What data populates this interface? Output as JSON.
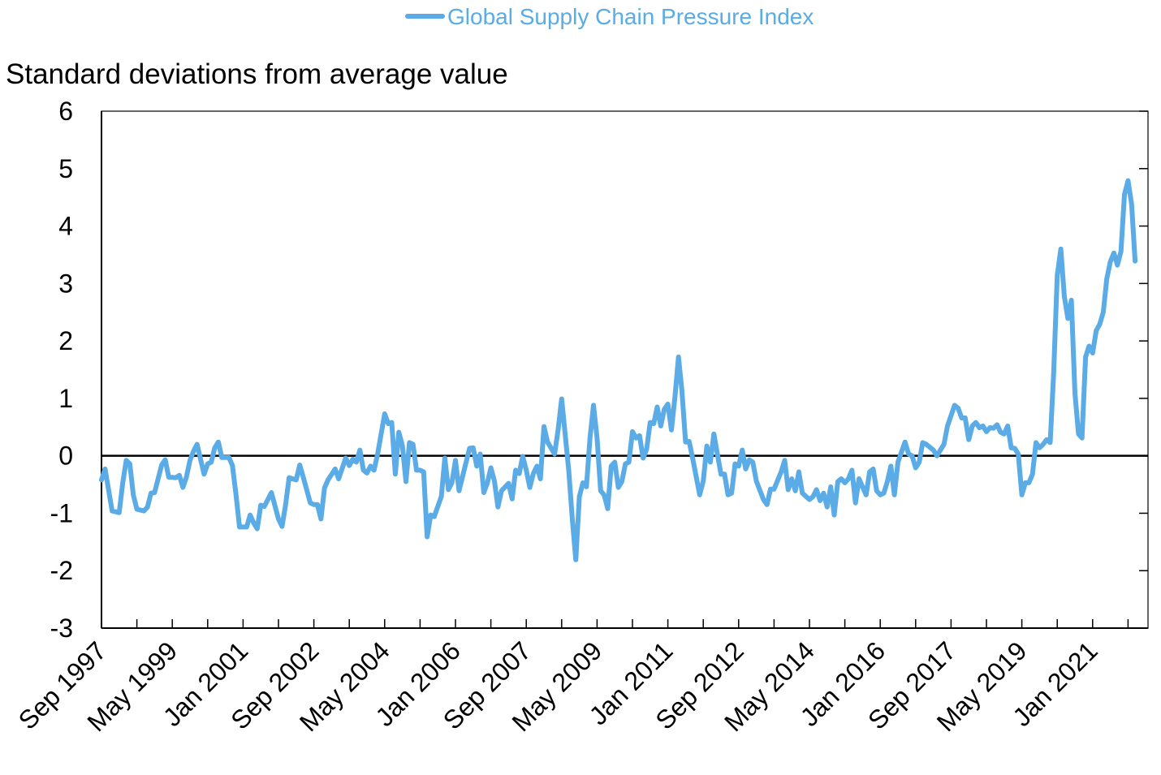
{
  "chart_data": {
    "type": "line",
    "title": "",
    "ylabel": "Standard deviations from average value",
    "xlabel": "",
    "x_unit": "months since Sep 1997",
    "ylim": [
      -3,
      6
    ],
    "yticks": [
      "6",
      "5",
      "4",
      "3",
      "2",
      "1",
      "0",
      "-1",
      "-2",
      "-3"
    ],
    "ytick_values": [
      6,
      5,
      4,
      3,
      2,
      1,
      0,
      -1,
      -2,
      -3
    ],
    "xlim": [
      0,
      295
    ],
    "xtick_step_months": 10,
    "xtick_labels": [
      "Sep 1997",
      "May 1999",
      "Jan 2001",
      "Sep 2002",
      "May 2004",
      "Jan 2006",
      "Sep 2007",
      "May 2009",
      "Jan 2011",
      "Sep 2012",
      "May 2014",
      "Jan 2016",
      "Sep 2017",
      "May 2019",
      "Jan 2021"
    ],
    "xtick_label_months": [
      0,
      20,
      40,
      60,
      80,
      100,
      120,
      140,
      160,
      180,
      200,
      220,
      240,
      260,
      280
    ],
    "zero_line": true,
    "legend_position": "top-center",
    "series": [
      {
        "name": "Global Supply Chain Pressure Index",
        "color": "#5AABE6",
        "x": [
          0,
          1,
          3,
          5,
          6,
          7,
          8,
          9,
          10,
          12,
          13,
          14,
          15,
          17,
          18,
          19,
          21,
          22,
          23,
          24,
          25,
          26,
          27,
          29,
          30,
          31,
          32,
          33,
          34,
          36,
          37,
          38,
          39,
          41,
          42,
          43,
          44,
          45,
          46,
          48,
          50,
          51,
          52,
          53,
          55,
          56,
          57,
          59,
          60,
          61,
          62,
          63,
          64,
          66,
          67,
          69,
          70,
          71,
          72,
          73,
          74,
          75,
          76,
          77,
          78,
          80,
          81,
          82,
          83,
          84,
          85,
          86,
          87,
          88,
          89,
          90,
          91,
          92,
          93,
          94,
          96,
          97,
          98,
          99,
          100,
          101,
          103,
          104,
          105,
          106,
          107,
          108,
          109,
          110,
          111,
          112,
          113,
          115,
          116,
          117,
          118,
          119,
          120,
          121,
          122,
          123,
          124,
          125,
          126,
          128,
          129,
          130,
          132,
          133,
          134,
          135,
          136,
          137,
          138,
          139,
          140,
          141,
          142,
          143,
          144,
          145,
          146,
          147,
          148,
          149,
          150,
          151,
          152,
          153,
          154,
          155,
          156,
          157,
          158,
          159,
          160,
          161,
          162,
          163,
          164,
          165,
          166,
          167,
          169,
          170,
          171,
          172,
          173,
          174,
          175,
          176,
          177,
          178,
          179,
          180,
          181,
          182,
          183,
          184,
          185,
          187,
          188,
          189,
          190,
          192,
          193,
          194,
          195,
          196,
          197,
          198,
          200,
          201,
          202,
          203,
          204,
          205,
          206,
          207,
          208,
          209,
          210,
          211,
          212,
          213,
          214,
          216,
          217,
          218,
          219,
          220,
          221,
          222,
          223,
          224,
          225,
          227,
          228,
          229,
          230,
          231,
          232,
          233,
          235,
          236,
          237,
          238,
          239,
          241,
          242,
          243,
          244,
          245,
          246,
          247,
          248,
          249,
          250,
          251,
          252,
          253,
          254,
          255,
          256,
          257,
          258,
          259,
          260,
          261,
          262,
          263,
          264,
          265,
          266,
          267,
          268,
          269,
          270,
          271,
          272,
          273,
          274,
          275,
          276,
          277,
          278,
          279,
          280,
          281,
          282,
          283,
          284,
          285,
          286,
          287,
          288,
          289,
          290,
          291,
          292
        ],
        "values": [
          -0.42,
          -0.23,
          -0.96,
          -0.99,
          -0.47,
          -0.08,
          -0.14,
          -0.68,
          -0.93,
          -0.96,
          -0.89,
          -0.65,
          -0.64,
          -0.16,
          -0.07,
          -0.37,
          -0.38,
          -0.34,
          -0.55,
          -0.37,
          -0.08,
          0.08,
          0.2,
          -0.32,
          -0.14,
          -0.11,
          0.14,
          0.24,
          -0.03,
          -0.03,
          -0.17,
          -0.68,
          -1.24,
          -1.24,
          -1.03,
          -1.17,
          -1.27,
          -0.86,
          -0.88,
          -0.64,
          -1.1,
          -1.23,
          -0.86,
          -0.38,
          -0.42,
          -0.16,
          -0.37,
          -0.82,
          -0.85,
          -0.85,
          -1.1,
          -0.56,
          -0.42,
          -0.23,
          -0.4,
          -0.04,
          -0.17,
          -0.06,
          -0.11,
          0.1,
          -0.25,
          -0.3,
          -0.18,
          -0.25,
          0.03,
          0.73,
          0.56,
          0.58,
          -0.32,
          0.41,
          0.18,
          -0.45,
          0.23,
          0.2,
          -0.25,
          -0.25,
          -0.28,
          -1.41,
          -1.03,
          -1.06,
          -0.71,
          -0.04,
          -0.59,
          -0.47,
          -0.08,
          -0.61,
          -0.11,
          0.13,
          0.14,
          -0.18,
          0.03,
          -0.64,
          -0.48,
          -0.21,
          -0.44,
          -0.89,
          -0.61,
          -0.48,
          -0.75,
          -0.25,
          -0.31,
          -0.01,
          -0.25,
          -0.55,
          -0.31,
          -0.18,
          -0.4,
          0.51,
          0.24,
          0.03,
          0.45,
          0.99,
          -0.25,
          -1.1,
          -1.81,
          -0.71,
          -0.47,
          -0.54,
          0.31,
          0.88,
          0.31,
          -0.61,
          -0.68,
          -0.92,
          -0.18,
          -0.11,
          -0.55,
          -0.45,
          -0.14,
          -0.11,
          0.42,
          0.31,
          0.35,
          -0.04,
          0.11,
          0.58,
          0.56,
          0.85,
          0.52,
          0.81,
          0.9,
          0.45,
          1.02,
          1.72,
          1.12,
          0.24,
          0.25,
          -0.04,
          -0.68,
          -0.44,
          0.17,
          -0.11,
          0.38,
          0.03,
          -0.32,
          -0.32,
          -0.68,
          -0.65,
          -0.14,
          -0.18,
          0.1,
          -0.23,
          -0.07,
          -0.11,
          -0.44,
          -0.76,
          -0.85,
          -0.58,
          -0.58,
          -0.28,
          -0.08,
          -0.59,
          -0.4,
          -0.61,
          -0.28,
          -0.65,
          -0.76,
          -0.71,
          -0.59,
          -0.78,
          -0.65,
          -0.89,
          -0.54,
          -1.03,
          -0.45,
          -0.4,
          -0.47,
          -0.4,
          -0.25,
          -0.82,
          -0.4,
          -0.68,
          -0.28,
          -0.23,
          -0.61,
          -0.68,
          -0.65,
          -0.45,
          -0.18,
          -0.68,
          -0.11,
          0.24,
          0.03,
          0.0,
          -0.21,
          -0.11,
          0.23,
          0.2,
          0.1,
          0.0,
          0.1,
          0.2,
          0.52,
          0.88,
          0.83,
          0.66,
          0.66,
          0.28,
          0.52,
          0.58,
          0.49,
          0.52,
          0.42,
          0.49,
          0.48,
          0.54,
          0.41,
          0.38,
          0.52,
          0.14,
          0.13,
          0.03,
          -0.68,
          -0.47,
          -0.47,
          -0.32,
          0.23,
          0.14,
          0.2,
          0.28,
          0.23,
          1.44,
          3.14,
          3.6,
          2.78,
          2.39,
          2.71,
          1.09,
          0.38,
          0.31,
          1.72,
          1.91,
          1.79,
          2.18,
          2.29,
          2.5,
          3.08,
          3.38,
          3.53,
          3.32,
          3.56,
          4.55,
          4.79,
          4.38,
          3.39
        ]
      }
    ]
  }
}
